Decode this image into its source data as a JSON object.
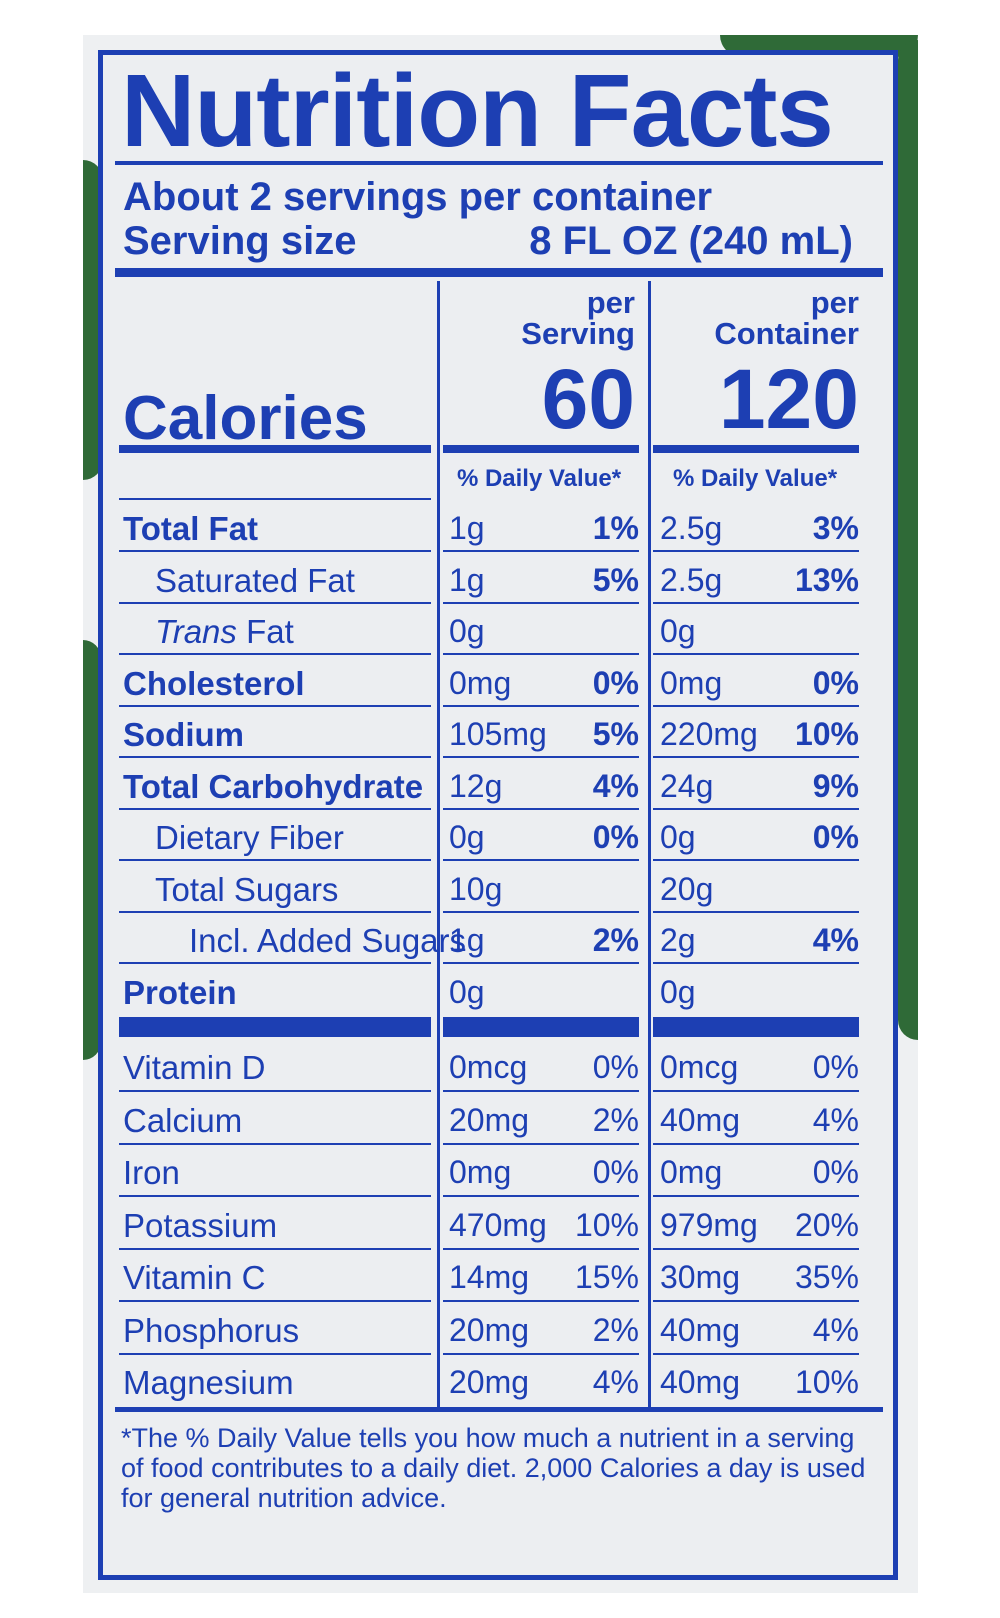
{
  "label": {
    "title": "Nutrition Facts",
    "servings_per_container": "About 2 servings per container",
    "serving_size_label": "Serving size",
    "serving_size_value": "8 FL OZ (240 mL)",
    "calories_label": "Calories",
    "per_serving_line1": "per",
    "per_serving_line2": "Serving",
    "per_container_line1": "per",
    "per_container_line2": "Container",
    "calories_per_serving": "60",
    "calories_per_container": "120",
    "daily_value_header": "% Daily Value*",
    "footnote": "*The % Daily Value tells you how much a nutrient in a serving of food contributes to a daily diet. 2,000 Calories a day is used for general nutrition advice."
  },
  "nutrients": [
    {
      "name": "Total Fat",
      "style": "bold",
      "serving_amount": "1g",
      "serving_dv": "1%",
      "container_amount": "2.5g",
      "container_dv": "3%"
    },
    {
      "name": "Saturated Fat",
      "style": "indent1",
      "serving_amount": "1g",
      "serving_dv": "5%",
      "container_amount": "2.5g",
      "container_dv": "13%"
    },
    {
      "name_italic": "Trans",
      "name": " Fat",
      "style": "indent1",
      "serving_amount": "0g",
      "serving_dv": "",
      "container_amount": "0g",
      "container_dv": ""
    },
    {
      "name": "Cholesterol",
      "style": "bold",
      "serving_amount": "0mg",
      "serving_dv": "0%",
      "container_amount": "0mg",
      "container_dv": "0%"
    },
    {
      "name": "Sodium",
      "style": "bold",
      "serving_amount": "105mg",
      "serving_dv": "5%",
      "container_amount": "220mg",
      "container_dv": "10%"
    },
    {
      "name": "Total Carbohydrate",
      "style": "bold",
      "serving_amount": "12g",
      "serving_dv": "4%",
      "container_amount": "24g",
      "container_dv": "9%"
    },
    {
      "name": "Dietary Fiber",
      "style": "indent1",
      "serving_amount": "0g",
      "serving_dv": "0%",
      "container_amount": "0g",
      "container_dv": "0%"
    },
    {
      "name": "Total Sugars",
      "style": "indent1",
      "serving_amount": "10g",
      "serving_dv": "",
      "container_amount": "20g",
      "container_dv": ""
    },
    {
      "name": "Incl. Added Sugars",
      "style": "indent2",
      "serving_amount": "1g",
      "serving_dv": "2%",
      "container_amount": "2g",
      "container_dv": "4%"
    },
    {
      "name": "Protein",
      "style": "bold",
      "serving_amount": "0g",
      "serving_dv": "",
      "container_amount": "0g",
      "container_dv": ""
    }
  ],
  "vitamins": [
    {
      "name": "Vitamin D",
      "serving_amount": "0mcg",
      "serving_dv": "0%",
      "container_amount": "0mcg",
      "container_dv": "0%"
    },
    {
      "name": "Calcium",
      "serving_amount": "20mg",
      "serving_dv": "2%",
      "container_amount": "40mg",
      "container_dv": "4%"
    },
    {
      "name": "Iron",
      "serving_amount": "0mg",
      "serving_dv": "0%",
      "container_amount": "0mg",
      "container_dv": "0%"
    },
    {
      "name": "Potassium",
      "serving_amount": "470mg",
      "serving_dv": "10%",
      "container_amount": "979mg",
      "container_dv": "20%"
    },
    {
      "name": "Vitamin C",
      "serving_amount": "14mg",
      "serving_dv": "15%",
      "container_amount": "30mg",
      "container_dv": "35%"
    },
    {
      "name": "Phosphorus",
      "serving_amount": "20mg",
      "serving_dv": "2%",
      "container_amount": "40mg",
      "container_dv": "4%"
    },
    {
      "name": "Magnesium",
      "serving_amount": "20mg",
      "serving_dv": "4%",
      "container_amount": "40mg",
      "container_dv": "10%"
    }
  ],
  "colors": {
    "ink": "#1d3fb3",
    "panel": "#eceef1",
    "leaf": "#2f6a37"
  }
}
